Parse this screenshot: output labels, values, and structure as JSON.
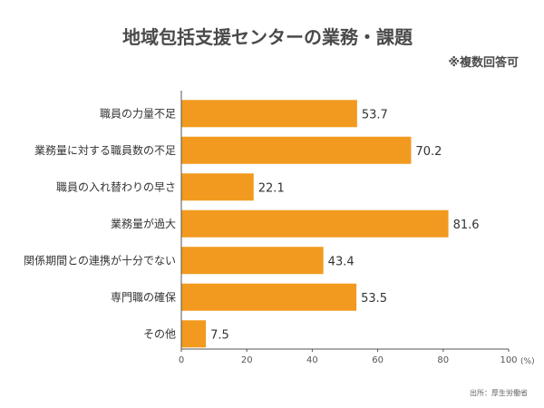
{
  "title": "地域包括支援センターの業務・課題",
  "subtitle": "※複数回答可",
  "source": "出所：厚生労働省",
  "chart_data": {
    "type": "bar",
    "orientation": "horizontal",
    "categories": [
      "職員の力量不足",
      "業務量に対する職員数の不足",
      "職員の入れ替わりの早さ",
      "業務量が過大",
      "関係期間との連携が十分でない",
      "専門職の確保",
      "その他"
    ],
    "values": [
      53.7,
      70.2,
      22.1,
      81.6,
      43.4,
      53.5,
      7.5
    ],
    "value_labels": [
      "53.7",
      "70.2",
      "22.1",
      "81.6",
      "43.4",
      "53.5",
      "7.5"
    ],
    "xlim": [
      0,
      100
    ],
    "xticks": [
      "0",
      "20",
      "40",
      "60",
      "80",
      "100"
    ],
    "xunit": "(%)",
    "bar_color": "#f29a1f",
    "grid": false
  }
}
